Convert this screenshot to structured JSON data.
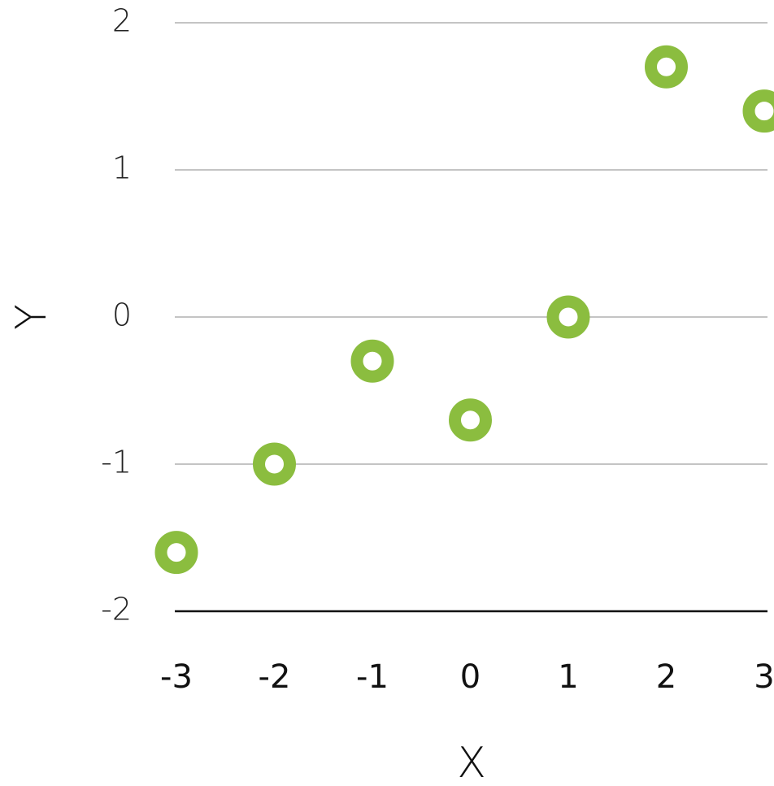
{
  "chart_data": {
    "type": "scatter",
    "title": "",
    "xlabel": "X",
    "ylabel": "Y",
    "xlim": [
      -3,
      3
    ],
    "ylim": [
      -2,
      2
    ],
    "x_ticks": [
      "-3",
      "-2",
      "-1",
      "0",
      "1",
      "2",
      "3"
    ],
    "y_ticks": [
      "2",
      "1",
      "0",
      "-1",
      "-2"
    ],
    "grid": true,
    "legend": "none",
    "series": [
      {
        "color": "#8bbd3f",
        "points": [
          {
            "x": -3,
            "y": -1.6
          },
          {
            "x": -2,
            "y": -1.0
          },
          {
            "x": -1,
            "y": -0.3
          },
          {
            "x": 0,
            "y": -0.7
          },
          {
            "x": 1,
            "y": 0.0
          },
          {
            "x": 2,
            "y": 1.7
          },
          {
            "x": 3,
            "y": 1.4
          }
        ]
      }
    ]
  }
}
